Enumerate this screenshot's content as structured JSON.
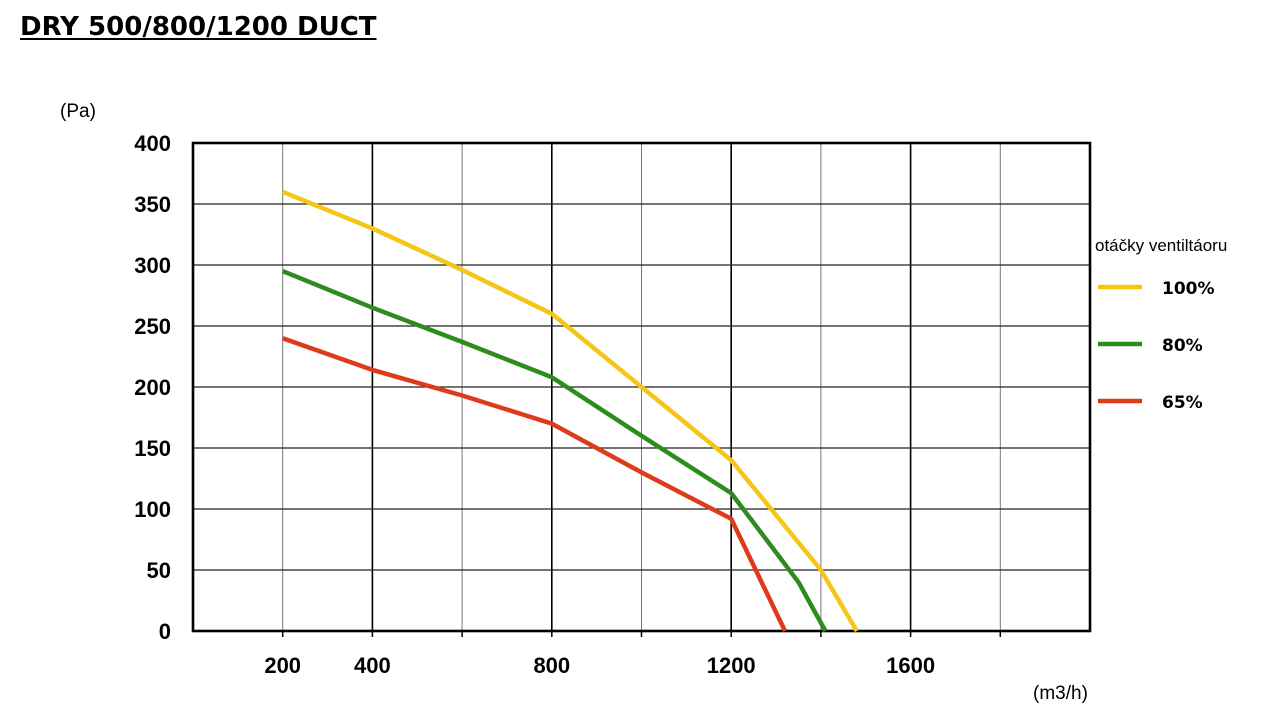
{
  "chart_data": {
    "type": "line",
    "title": "DRY 500/800/1200 DUCT",
    "ylabel": "(Pa)",
    "xlabel": "(m3/h)",
    "xlim": [
      0,
      2000
    ],
    "ylim": [
      0,
      400
    ],
    "x_ticks": [
      200,
      400,
      800,
      1200,
      1600
    ],
    "y_ticks": [
      0,
      50,
      100,
      150,
      200,
      250,
      300,
      350,
      400
    ],
    "grid": true,
    "legend_title": "otáčky ventiltáoru",
    "legend_position": "right",
    "series": [
      {
        "name": "100%",
        "color": "#f5c518",
        "points": [
          [
            200,
            360
          ],
          [
            400,
            330
          ],
          [
            600,
            296
          ],
          [
            800,
            260
          ],
          [
            1000,
            200
          ],
          [
            1200,
            140
          ],
          [
            1400,
            50
          ],
          [
            1480,
            0
          ]
        ]
      },
      {
        "name": "80%",
        "color": "#2e8b1e",
        "points": [
          [
            200,
            295
          ],
          [
            400,
            265
          ],
          [
            600,
            237
          ],
          [
            800,
            208
          ],
          [
            1000,
            160
          ],
          [
            1200,
            113
          ],
          [
            1350,
            40
          ],
          [
            1410,
            0
          ]
        ]
      },
      {
        "name": "65%",
        "color": "#dd3b1c",
        "points": [
          [
            200,
            240
          ],
          [
            400,
            214
          ],
          [
            600,
            193
          ],
          [
            800,
            170
          ],
          [
            1000,
            130
          ],
          [
            1200,
            92
          ],
          [
            1320,
            0
          ]
        ]
      }
    ]
  }
}
